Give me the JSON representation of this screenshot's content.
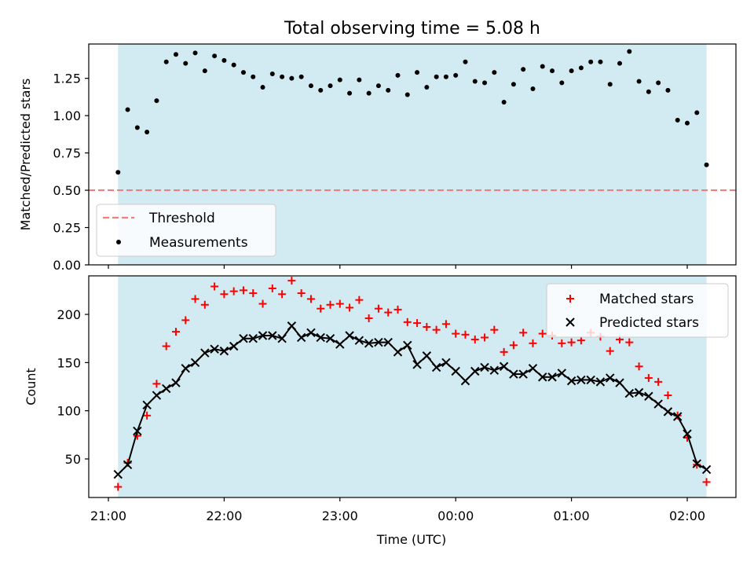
{
  "figure": {
    "title": "Total observing time = 5.08 h"
  },
  "chart_data": [
    {
      "type": "scatter",
      "panel": "top",
      "ylabel": "Matched/Predicted stars",
      "ylim": [
        0.0,
        1.48
      ],
      "yticks": [
        0.0,
        0.25,
        0.5,
        0.75,
        1.0,
        1.25
      ],
      "ytick_labels": [
        "0.00",
        "0.25",
        "0.50",
        "0.75",
        "1.00",
        "1.25"
      ],
      "legend_position": "lower-left",
      "shaded_band": {
        "x_start": "21:05",
        "x_end": "02:10",
        "color": "#add8e6"
      },
      "threshold": {
        "name": "Threshold",
        "value": 0.5,
        "style": "dashed",
        "color": "#f08080"
      },
      "series": [
        {
          "name": "Measurements",
          "marker": "dot",
          "color": "#000000",
          "x": [
            "21:05",
            "21:10",
            "21:15",
            "21:20",
            "21:25",
            "21:30",
            "21:35",
            "21:40",
            "21:45",
            "21:50",
            "21:55",
            "22:00",
            "22:05",
            "22:10",
            "22:15",
            "22:20",
            "22:25",
            "22:30",
            "22:35",
            "22:40",
            "22:45",
            "22:50",
            "22:55",
            "23:00",
            "23:05",
            "23:10",
            "23:15",
            "23:20",
            "23:25",
            "23:30",
            "23:35",
            "23:40",
            "23:45",
            "23:50",
            "23:55",
            "00:00",
            "00:05",
            "00:10",
            "00:15",
            "00:20",
            "00:25",
            "00:30",
            "00:35",
            "00:40",
            "00:45",
            "00:50",
            "00:55",
            "01:00",
            "01:05",
            "01:10",
            "01:15",
            "01:20",
            "01:25",
            "01:30",
            "01:35",
            "01:40",
            "01:45",
            "01:50",
            "01:55",
            "02:00",
            "02:05",
            "02:10"
          ],
          "y": [
            0.62,
            1.04,
            0.92,
            0.89,
            1.1,
            1.36,
            1.41,
            1.35,
            1.42,
            1.3,
            1.4,
            1.37,
            1.34,
            1.29,
            1.26,
            1.19,
            1.28,
            1.26,
            1.25,
            1.26,
            1.2,
            1.17,
            1.2,
            1.24,
            1.15,
            1.24,
            1.15,
            1.2,
            1.17,
            1.27,
            1.14,
            1.29,
            1.19,
            1.26,
            1.26,
            1.27,
            1.36,
            1.23,
            1.22,
            1.29,
            1.09,
            1.21,
            1.31,
            1.18,
            1.33,
            1.3,
            1.22,
            1.3,
            1.32,
            1.36,
            1.36,
            1.21,
            1.35,
            1.43,
            1.23,
            1.16,
            1.22,
            1.17,
            0.97,
            0.95,
            1.02,
            0.67
          ]
        }
      ]
    },
    {
      "type": "scatter",
      "panel": "bottom",
      "xlabel": "Time (UTC)",
      "ylabel": "Count",
      "ylim": [
        10,
        240
      ],
      "yticks": [
        50,
        100,
        150,
        200
      ],
      "xticks": [
        "21:00",
        "22:00",
        "23:00",
        "00:00",
        "01:00",
        "02:00"
      ],
      "legend_position": "upper-right",
      "shaded_band": {
        "x_start": "21:05",
        "x_end": "02:10",
        "color": "#add8e6"
      },
      "series": [
        {
          "name": "Matched stars",
          "marker": "plus",
          "color": "#ff0000",
          "x": [
            "21:05",
            "21:10",
            "21:15",
            "21:20",
            "21:25",
            "21:30",
            "21:35",
            "21:40",
            "21:45",
            "21:50",
            "21:55",
            "22:00",
            "22:05",
            "22:10",
            "22:15",
            "22:20",
            "22:25",
            "22:30",
            "22:35",
            "22:40",
            "22:45",
            "22:50",
            "22:55",
            "23:00",
            "23:05",
            "23:10",
            "23:15",
            "23:20",
            "23:25",
            "23:30",
            "23:35",
            "23:40",
            "23:45",
            "23:50",
            "23:55",
            "00:00",
            "00:05",
            "00:10",
            "00:15",
            "00:20",
            "00:25",
            "00:30",
            "00:35",
            "00:40",
            "00:45",
            "00:50",
            "00:55",
            "01:00",
            "01:05",
            "01:10",
            "01:15",
            "01:20",
            "01:25",
            "01:30",
            "01:35",
            "01:40",
            "01:45",
            "01:50",
            "01:55",
            "02:00",
            "02:05",
            "02:10"
          ],
          "y": [
            21,
            46,
            74,
            95,
            128,
            167,
            182,
            194,
            216,
            210,
            229,
            221,
            224,
            225,
            222,
            211,
            227,
            221,
            235,
            222,
            216,
            206,
            210,
            211,
            207,
            215,
            196,
            206,
            202,
            205,
            192,
            191,
            187,
            184,
            190,
            180,
            179,
            174,
            176,
            184,
            161,
            168,
            181,
            170,
            180,
            178,
            170,
            171,
            173,
            181,
            177,
            162,
            174,
            171,
            146,
            134,
            130,
            116,
            95,
            72,
            44,
            26
          ]
        },
        {
          "name": "Predicted stars",
          "marker": "x",
          "color": "#000000",
          "connect_line": true,
          "x": [
            "21:05",
            "21:10",
            "21:15",
            "21:20",
            "21:25",
            "21:30",
            "21:35",
            "21:40",
            "21:45",
            "21:50",
            "21:55",
            "22:00",
            "22:05",
            "22:10",
            "22:15",
            "22:20",
            "22:25",
            "22:30",
            "22:35",
            "22:40",
            "22:45",
            "22:50",
            "22:55",
            "23:00",
            "23:05",
            "23:10",
            "23:15",
            "23:20",
            "23:25",
            "23:30",
            "23:35",
            "23:40",
            "23:45",
            "23:50",
            "23:55",
            "00:00",
            "00:05",
            "00:10",
            "00:15",
            "00:20",
            "00:25",
            "00:30",
            "00:35",
            "00:40",
            "00:45",
            "00:50",
            "00:55",
            "01:00",
            "01:05",
            "01:10",
            "01:15",
            "01:20",
            "01:25",
            "01:30",
            "01:35",
            "01:40",
            "01:45",
            "01:50",
            "01:55",
            "02:00",
            "02:05",
            "02:10"
          ],
          "y": [
            34,
            44,
            79,
            106,
            116,
            123,
            129,
            144,
            150,
            160,
            164,
            162,
            167,
            175,
            175,
            178,
            178,
            175,
            188,
            176,
            181,
            176,
            175,
            169,
            178,
            173,
            170,
            171,
            171,
            161,
            168,
            148,
            157,
            145,
            150,
            141,
            131,
            141,
            145,
            142,
            146,
            138,
            138,
            144,
            135,
            135,
            139,
            131,
            132,
            132,
            130,
            134,
            129,
            118,
            119,
            115,
            107,
            99,
            94,
            76,
            45,
            39
          ]
        }
      ]
    }
  ]
}
